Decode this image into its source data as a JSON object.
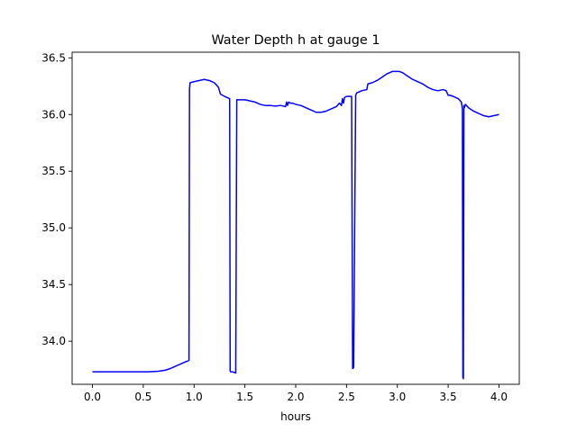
{
  "chart_data": {
    "type": "line",
    "title": "Water Depth h at gauge 1",
    "xlabel": "hours",
    "ylabel": "",
    "xlim": [
      -0.2,
      4.2
    ],
    "ylim": [
      33.62,
      36.55
    ],
    "xticks": [
      0.0,
      0.5,
      1.0,
      1.5,
      2.0,
      2.5,
      3.0,
      3.5,
      4.0
    ],
    "xtick_labels": [
      "0.0",
      "0.5",
      "1.0",
      "1.5",
      "2.0",
      "2.5",
      "3.0",
      "3.5",
      "4.0"
    ],
    "yticks": [
      34.0,
      34.5,
      35.0,
      35.5,
      36.0,
      36.5
    ],
    "ytick_labels": [
      "34.0",
      "34.5",
      "35.0",
      "35.5",
      "36.0",
      "36.5"
    ],
    "grid": false,
    "series": [
      {
        "color": "#0000ff",
        "x": [
          0.0,
          0.2,
          0.4,
          0.55,
          0.65,
          0.72,
          0.77,
          0.82,
          0.87,
          0.92,
          0.95,
          0.955,
          0.96,
          1.0,
          1.05,
          1.1,
          1.15,
          1.2,
          1.24,
          1.26,
          1.3,
          1.35,
          1.355,
          1.36,
          1.38,
          1.41,
          1.42,
          1.45,
          1.5,
          1.55,
          1.6,
          1.65,
          1.7,
          1.75,
          1.8,
          1.85,
          1.9,
          1.91,
          1.92,
          1.93,
          1.95,
          1.97,
          2.0,
          2.05,
          2.1,
          2.15,
          2.2,
          2.25,
          2.3,
          2.35,
          2.4,
          2.43,
          2.45,
          2.46,
          2.47,
          2.48,
          2.5,
          2.53,
          2.55,
          2.56,
          2.565,
          2.57,
          2.59,
          2.6,
          2.65,
          2.7,
          2.71,
          2.75,
          2.8,
          2.85,
          2.9,
          2.95,
          3.0,
          3.02,
          3.05,
          3.1,
          3.15,
          3.2,
          3.25,
          3.3,
          3.35,
          3.4,
          3.45,
          3.48,
          3.5,
          3.52,
          3.55,
          3.6,
          3.63,
          3.64,
          3.645,
          3.65,
          3.655,
          3.66,
          3.67,
          3.68,
          3.7,
          3.75,
          3.8,
          3.85,
          3.9,
          3.95,
          4.0
        ],
        "y": [
          33.73,
          33.73,
          33.73,
          33.73,
          33.735,
          33.745,
          33.76,
          33.78,
          33.8,
          33.82,
          33.83,
          36.22,
          36.28,
          36.29,
          36.3,
          36.31,
          36.3,
          36.28,
          36.24,
          36.18,
          36.16,
          36.14,
          33.74,
          33.73,
          33.73,
          33.72,
          36.13,
          36.13,
          36.13,
          36.12,
          36.11,
          36.09,
          36.08,
          36.08,
          36.075,
          36.08,
          36.07,
          36.11,
          36.08,
          36.11,
          36.1,
          36.1,
          36.09,
          36.08,
          36.06,
          36.04,
          36.02,
          36.02,
          36.03,
          36.05,
          36.07,
          36.1,
          36.08,
          36.14,
          36.1,
          36.15,
          36.16,
          36.16,
          36.16,
          33.76,
          33.76,
          33.77,
          36.17,
          36.19,
          36.21,
          36.22,
          36.27,
          36.28,
          36.3,
          36.33,
          36.36,
          36.38,
          36.38,
          36.38,
          36.37,
          36.34,
          36.31,
          36.29,
          36.27,
          36.24,
          36.22,
          36.21,
          36.22,
          36.21,
          36.17,
          36.17,
          36.16,
          36.14,
          36.11,
          36.05,
          33.68,
          33.67,
          36.08,
          36.06,
          36.09,
          36.08,
          36.06,
          36.03,
          36.01,
          35.99,
          35.98,
          35.99,
          36.0
        ]
      }
    ]
  }
}
